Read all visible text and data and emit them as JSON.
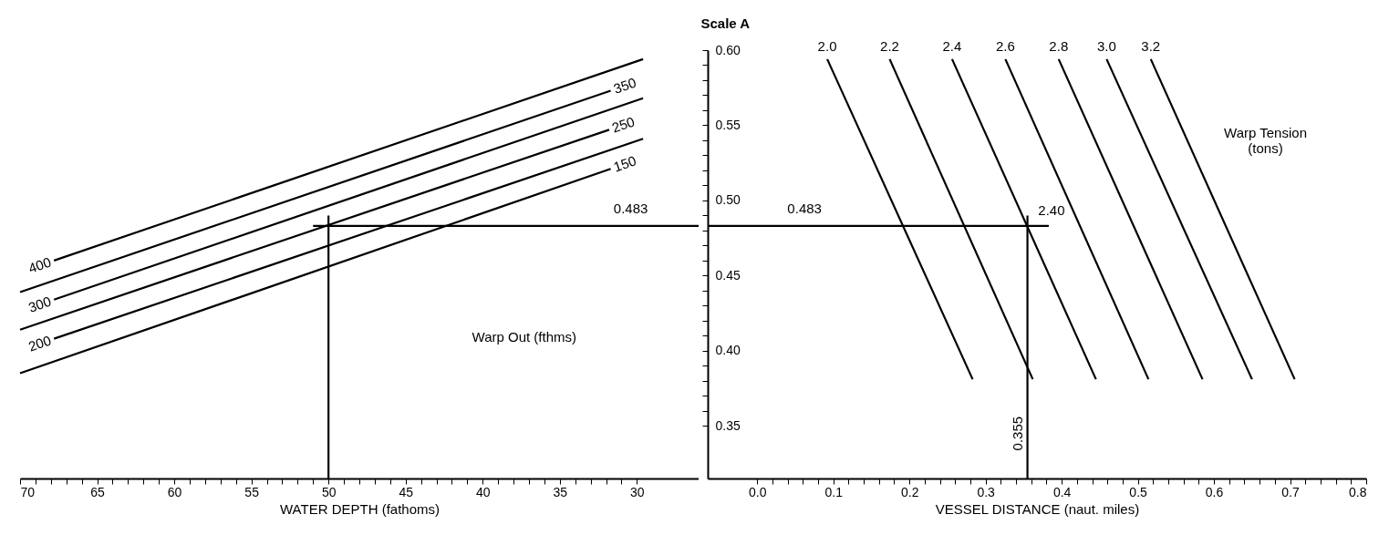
{
  "chart_data": [
    {
      "type": "line",
      "xlabel": "WATER DEPTH (fathoms)",
      "xlim": [
        70,
        26
      ],
      "ylim": [
        0.315,
        0.6
      ],
      "tick_labels": "x",
      "line_style": "solid",
      "xticks": [
        70,
        {
          "value": 69,
          "label": null
        },
        {
          "value": 68,
          "label": null
        },
        {
          "value": 67,
          "label": null
        },
        {
          "value": 66,
          "label": null
        },
        65,
        {
          "value": 64,
          "label": null
        },
        {
          "value": 63,
          "label": null
        },
        {
          "value": 62,
          "label": null
        },
        {
          "value": 61,
          "label": null
        },
        60,
        {
          "value": 59,
          "label": null
        },
        {
          "value": 58,
          "label": null
        },
        {
          "value": 57,
          "label": null
        },
        {
          "value": 56,
          "label": null
        },
        55,
        {
          "value": 54,
          "label": null
        },
        {
          "value": 53,
          "label": null
        },
        {
          "value": 52,
          "label": null
        },
        {
          "value": 51,
          "label": null
        },
        50,
        {
          "value": 49,
          "label": null
        },
        {
          "value": 48,
          "label": null
        },
        {
          "value": 47,
          "label": null
        },
        {
          "value": 46,
          "label": null
        },
        45,
        {
          "value": 44,
          "label": null
        },
        {
          "value": 43,
          "label": null
        },
        {
          "value": 42,
          "label": null
        },
        {
          "value": 41,
          "label": null
        },
        40,
        {
          "value": 39,
          "label": null
        },
        {
          "value": 38,
          "label": null
        },
        {
          "value": 37,
          "label": null
        },
        {
          "value": 36,
          "label": null
        },
        35,
        {
          "value": 34,
          "label": null
        },
        {
          "value": 33,
          "label": null
        },
        {
          "value": 32,
          "label": null
        },
        {
          "value": 31,
          "label": null
        },
        30
      ],
      "series": [
        {
          "name": "400",
          "color": "#000000",
          "x": [
            67.8,
            29.6
          ],
          "values": [
            0.46,
            0.594
          ]
        },
        {
          "name": "350",
          "color": "#000000",
          "x": [
            70,
            31.7
          ],
          "values": [
            0.439,
            0.573
          ]
        },
        {
          "name": "300",
          "color": "#000000",
          "x": [
            67.8,
            29.6
          ],
          "values": [
            0.434,
            0.568
          ]
        },
        {
          "name": "250",
          "color": "#000000",
          "x": [
            70,
            31.8
          ],
          "values": [
            0.414,
            0.547
          ]
        },
        {
          "name": "200",
          "color": "#000000",
          "x": [
            67.8,
            29.6
          ],
          "values": [
            0.408,
            0.541
          ]
        },
        {
          "name": "150",
          "color": "#000000",
          "x": [
            70,
            31.7
          ],
          "values": [
            0.385,
            0.521
          ]
        },
        {
          "color": "#000000",
          "x": [
            50,
            50
          ],
          "values": [
            0.315,
            0.49
          ]
        },
        {
          "color": "#000000",
          "x": [
            51,
            26
          ],
          "values": [
            0.483,
            0.483
          ]
        }
      ],
      "annotations": [
        "0.483",
        "Warp Out (fthms)"
      ]
    },
    {
      "type": "line",
      "xlabel": "VESSEL DISTANCE (naut. miles)",
      "ylabel": "Scale A",
      "xlim": [
        -0.065,
        0.8
      ],
      "ylim": [
        0.315,
        0.6
      ],
      "line_style": "solid",
      "xticks": [
        {
          "value": 0,
          "label": "0.0"
        },
        {
          "value": 0.02,
          "label": null
        },
        {
          "value": 0.04,
          "label": null
        },
        {
          "value": 0.06,
          "label": null
        },
        {
          "value": 0.08,
          "label": null
        },
        0.1,
        {
          "value": 0.12,
          "label": null
        },
        {
          "value": 0.14,
          "label": null
        },
        {
          "value": 0.16,
          "label": null
        },
        {
          "value": 0.18,
          "label": null
        },
        0.2,
        {
          "value": 0.22,
          "label": null
        },
        {
          "value": 0.24,
          "label": null
        },
        {
          "value": 0.26,
          "label": null
        },
        {
          "value": 0.28,
          "label": null
        },
        0.3,
        {
          "value": 0.32,
          "label": null
        },
        {
          "value": 0.34,
          "label": null
        },
        {
          "value": 0.36,
          "label": null
        },
        {
          "value": 0.38,
          "label": null
        },
        0.4,
        {
          "value": 0.42,
          "label": null
        },
        {
          "value": 0.44,
          "label": null
        },
        {
          "value": 0.46,
          "label": null
        },
        {
          "value": 0.48,
          "label": null
        },
        0.5,
        {
          "value": 0.52,
          "label": null
        },
        {
          "value": 0.54,
          "label": null
        },
        {
          "value": 0.56,
          "label": null
        },
        {
          "value": 0.58,
          "label": null
        },
        0.6,
        {
          "value": 0.62,
          "label": null
        },
        {
          "value": 0.64,
          "label": null
        },
        {
          "value": 0.66,
          "label": null
        },
        {
          "value": 0.68,
          "label": null
        },
        0.7,
        {
          "value": 0.72,
          "label": null
        },
        {
          "value": 0.74,
          "label": null
        },
        {
          "value": 0.76,
          "label": null
        },
        {
          "value": 0.78,
          "label": null
        },
        0.8
      ],
      "yticks": [
        0.35,
        {
          "value": 0.36,
          "label": null
        },
        {
          "value": 0.37,
          "label": null
        },
        {
          "value": 0.38,
          "label": null
        },
        {
          "value": 0.39,
          "label": null
        },
        {
          "value": 0.4,
          "label": "0.40"
        },
        {
          "value": 0.41,
          "label": null
        },
        {
          "value": 0.42,
          "label": null
        },
        {
          "value": 0.43,
          "label": null
        },
        {
          "value": 0.44,
          "label": null
        },
        0.45,
        {
          "value": 0.46,
          "label": null
        },
        {
          "value": 0.47,
          "label": null
        },
        {
          "value": 0.48,
          "label": null
        },
        {
          "value": 0.49,
          "label": null
        },
        {
          "value": 0.5,
          "label": "0.50"
        },
        {
          "value": 0.51,
          "label": null
        },
        {
          "value": 0.52,
          "label": null
        },
        {
          "value": 0.53,
          "label": null
        },
        {
          "value": 0.54,
          "label": null
        },
        0.55,
        {
          "value": 0.56,
          "label": null
        },
        {
          "value": 0.57,
          "label": null
        },
        {
          "value": 0.58,
          "label": null
        },
        {
          "value": 0.59,
          "label": null
        },
        {
          "value": 0.6,
          "label": "0.60"
        }
      ],
      "series": [
        {
          "name": "2.0",
          "color": "#000000",
          "x": [
            0.092,
            0.283
          ],
          "values": [
            0.594,
            0.381
          ]
        },
        {
          "name": "2.2",
          "color": "#000000",
          "x": [
            0.174,
            0.362
          ],
          "values": [
            0.594,
            0.381
          ]
        },
        {
          "name": "2.4",
          "color": "#000000",
          "x": [
            0.256,
            0.445
          ],
          "values": [
            0.594,
            0.381
          ]
        },
        {
          "name": "2.6",
          "color": "#000000",
          "x": [
            0.326,
            0.514
          ],
          "values": [
            0.594,
            0.381
          ]
        },
        {
          "name": "2.8",
          "color": "#000000",
          "x": [
            0.396,
            0.585
          ],
          "values": [
            0.594,
            0.381
          ]
        },
        {
          "name": "3.0",
          "color": "#000000",
          "x": [
            0.459,
            0.65
          ],
          "values": [
            0.594,
            0.381
          ]
        },
        {
          "name": "3.2",
          "color": "#000000",
          "x": [
            0.517,
            0.706
          ],
          "values": [
            0.594,
            0.381
          ]
        },
        {
          "color": "#000000",
          "x": [
            -0.065,
            0.383
          ],
          "values": [
            0.483,
            0.483
          ]
        },
        {
          "color": "#000000",
          "x": [
            0.355,
            0.355
          ],
          "values": [
            0.49,
            0.315
          ]
        }
      ],
      "annotations": [
        "0.483",
        "2.40",
        "0.355",
        "Warp Tension\n(tons)"
      ]
    }
  ]
}
